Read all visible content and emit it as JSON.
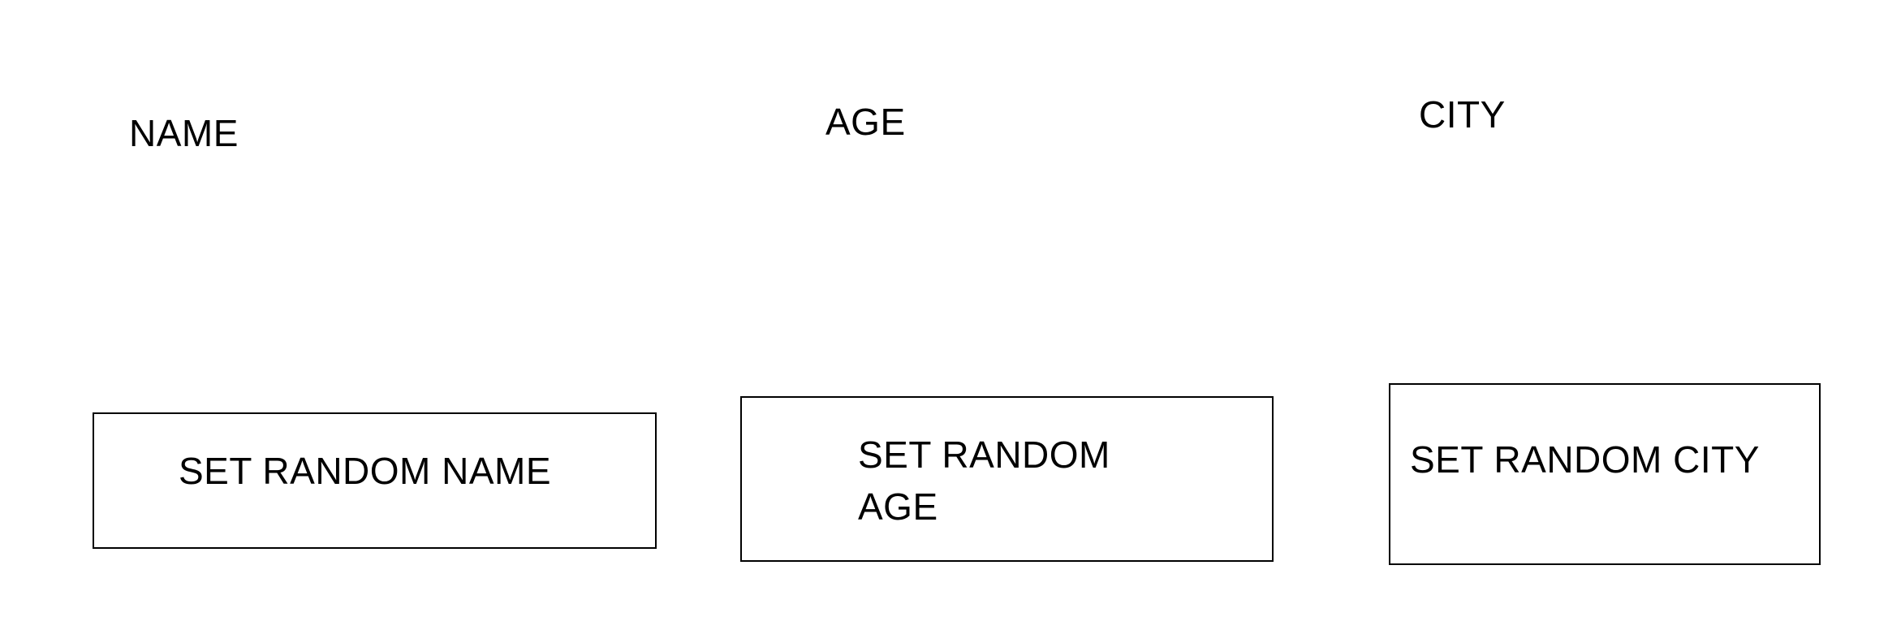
{
  "labels": {
    "name": "NAME",
    "age": "AGE",
    "city": "CITY"
  },
  "buttons": {
    "set_random_name": "SET RANDOM NAME",
    "set_random_age": "SET RANDOM AGE",
    "set_random_city": "SET RANDOM CITY"
  }
}
